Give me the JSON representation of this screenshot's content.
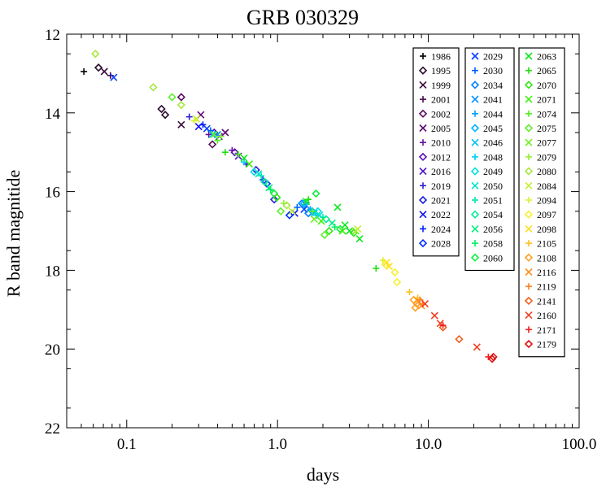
{
  "chart_data": {
    "type": "scatter",
    "title": "GRB 030329",
    "xlabel": "days",
    "ylabel": "R band magnitide",
    "xscale": "log",
    "xlim": [
      0.04,
      100.0
    ],
    "ylim": [
      22,
      12
    ],
    "y_inverted": true,
    "grid": false,
    "legend_placement": "top-right",
    "x_ticks": [
      {
        "v": 0.1,
        "label": "0.1"
      },
      {
        "v": 1.0,
        "label": "1.0"
      },
      {
        "v": 10.0,
        "label": "10.0"
      },
      {
        "v": 100.0,
        "label": "100.0"
      }
    ],
    "y_ticks": [
      {
        "v": 12,
        "label": "12"
      },
      {
        "v": 14,
        "label": "14"
      },
      {
        "v": 16,
        "label": "16"
      },
      {
        "v": 18,
        "label": "18"
      },
      {
        "v": 20,
        "label": "20"
      },
      {
        "v": 22,
        "label": "22"
      }
    ],
    "series": [
      {
        "name": "1986",
        "marker": "plus",
        "color": "#000000",
        "points": [
          [
            0.052,
            12.95
          ]
        ]
      },
      {
        "name": "1995",
        "marker": "diamond",
        "color": "#2a0a2a",
        "points": [
          [
            0.065,
            12.85
          ],
          [
            0.17,
            13.9
          ],
          [
            0.18,
            14.05
          ]
        ]
      },
      {
        "name": "1999",
        "marker": "x",
        "color": "#3a0a3a",
        "points": [
          [
            0.071,
            12.95
          ],
          [
            0.23,
            14.3
          ]
        ]
      },
      {
        "name": "2001",
        "marker": "plus",
        "color": "#4a0a4a",
        "points": [
          [
            0.078,
            13.05
          ]
        ]
      },
      {
        "name": "2002",
        "marker": "diamond",
        "color": "#5a0a60",
        "points": [
          [
            0.23,
            13.6
          ],
          [
            0.37,
            14.8
          ]
        ]
      },
      {
        "name": "2005",
        "marker": "x",
        "color": "#650a75",
        "points": [
          [
            0.31,
            14.05
          ],
          [
            0.45,
            14.5
          ]
        ]
      },
      {
        "name": "2010",
        "marker": "plus",
        "color": "#6a10a0",
        "points": [
          [
            0.35,
            14.55
          ],
          [
            0.5,
            14.95
          ]
        ]
      },
      {
        "name": "2012",
        "marker": "diamond",
        "color": "#5a10b5",
        "points": [
          [
            0.38,
            14.5
          ],
          [
            0.52,
            15.0
          ]
        ]
      },
      {
        "name": "2016",
        "marker": "x",
        "color": "#5010c0",
        "points": [
          [
            0.41,
            14.6
          ],
          [
            0.55,
            15.1
          ]
        ]
      },
      {
        "name": "2019",
        "marker": "plus",
        "color": "#3020d5",
        "points": [
          [
            0.26,
            14.1
          ],
          [
            0.62,
            15.3
          ]
        ]
      },
      {
        "name": "2021",
        "marker": "diamond",
        "color": "#2020e0",
        "points": [
          [
            0.72,
            15.45
          ],
          [
            0.95,
            16.2
          ]
        ]
      },
      {
        "name": "2022",
        "marker": "x",
        "color": "#1010f0",
        "points": [
          [
            0.3,
            14.35
          ],
          [
            1.3,
            16.55
          ]
        ]
      },
      {
        "name": "2024",
        "marker": "plus",
        "color": "#0020ff",
        "points": [
          [
            0.32,
            14.3
          ],
          [
            0.8,
            15.7
          ]
        ]
      },
      {
        "name": "2028",
        "marker": "diamond",
        "color": "#0030ff",
        "points": [
          [
            0.85,
            15.8
          ],
          [
            1.2,
            16.6
          ]
        ]
      },
      {
        "name": "2029",
        "marker": "x",
        "color": "#0040ff",
        "points": [
          [
            0.082,
            13.1
          ],
          [
            0.34,
            14.4
          ],
          [
            1.5,
            16.45
          ]
        ]
      },
      {
        "name": "2030",
        "marker": "plus",
        "color": "#0060ff",
        "points": [
          [
            0.36,
            14.45
          ],
          [
            1.35,
            16.4
          ]
        ]
      },
      {
        "name": "2034",
        "marker": "diamond",
        "color": "#0080ff",
        "points": [
          [
            1.45,
            16.3
          ],
          [
            1.6,
            16.55
          ]
        ]
      },
      {
        "name": "2041",
        "marker": "x",
        "color": "#0090ff",
        "points": [
          [
            0.4,
            14.55
          ],
          [
            1.55,
            16.35
          ]
        ]
      },
      {
        "name": "2044",
        "marker": "plus",
        "color": "#00a0ff",
        "points": [
          [
            0.42,
            14.6
          ],
          [
            1.65,
            16.45
          ]
        ]
      },
      {
        "name": "2045",
        "marker": "diamond",
        "color": "#00b5ff",
        "points": [
          [
            1.5,
            16.3
          ],
          [
            1.7,
            16.5
          ]
        ]
      },
      {
        "name": "2046",
        "marker": "x",
        "color": "#00c0f0",
        "points": [
          [
            0.37,
            14.55
          ],
          [
            1.75,
            16.55
          ]
        ]
      },
      {
        "name": "2048",
        "marker": "plus",
        "color": "#00d0f0",
        "points": [
          [
            0.6,
            15.25
          ],
          [
            1.8,
            16.6
          ]
        ]
      },
      {
        "name": "2049",
        "marker": "diamond",
        "color": "#00e0e0",
        "points": [
          [
            0.7,
            15.5
          ],
          [
            1.85,
            16.5
          ]
        ]
      },
      {
        "name": "2050",
        "marker": "x",
        "color": "#00e0c8",
        "points": [
          [
            0.75,
            15.55
          ],
          [
            1.9,
            16.6
          ]
        ]
      },
      {
        "name": "2051",
        "marker": "plus",
        "color": "#00e8b0",
        "points": [
          [
            0.78,
            15.6
          ],
          [
            2.0,
            16.65
          ]
        ]
      },
      {
        "name": "2054",
        "marker": "diamond",
        "color": "#00ee98",
        "points": [
          [
            0.82,
            15.75
          ],
          [
            2.1,
            16.7
          ]
        ]
      },
      {
        "name": "2056",
        "marker": "x",
        "color": "#00f080",
        "points": [
          [
            0.88,
            15.9
          ],
          [
            2.3,
            16.8
          ]
        ]
      },
      {
        "name": "2058",
        "marker": "plus",
        "color": "#00f060",
        "points": [
          [
            0.9,
            15.95
          ],
          [
            2.4,
            16.9
          ]
        ]
      },
      {
        "name": "2060",
        "marker": "diamond",
        "color": "#10f040",
        "points": [
          [
            0.95,
            16.05
          ],
          [
            1.8,
            16.05
          ],
          [
            2.6,
            16.95
          ]
        ]
      },
      {
        "name": "2063",
        "marker": "x",
        "color": "#10e820",
        "points": [
          [
            0.6,
            15.15
          ],
          [
            1.55,
            16.25
          ],
          [
            2.5,
            16.4
          ],
          [
            2.8,
            16.85
          ],
          [
            3.0,
            17.0
          ],
          [
            3.5,
            17.2
          ]
        ]
      },
      {
        "name": "2065",
        "marker": "plus",
        "color": "#20e010",
        "points": [
          [
            0.45,
            15.0
          ],
          [
            1.6,
            16.2
          ],
          [
            4.5,
            17.95
          ]
        ]
      },
      {
        "name": "2070",
        "marker": "diamond",
        "color": "#30e810",
        "points": [
          [
            0.99,
            16.15
          ],
          [
            2.2,
            17.0
          ],
          [
            3.2,
            17.05
          ]
        ]
      },
      {
        "name": "2071",
        "marker": "x",
        "color": "#40f010",
        "points": [
          [
            0.65,
            15.3
          ],
          [
            1.95,
            16.75
          ],
          [
            2.7,
            17.0
          ]
        ]
      },
      {
        "name": "2074",
        "marker": "plus",
        "color": "#50f020",
        "points": [
          [
            0.4,
            14.7
          ],
          [
            0.55,
            15.05
          ],
          [
            1.7,
            16.5
          ]
        ]
      },
      {
        "name": "2075",
        "marker": "diamond",
        "color": "#60f030",
        "points": [
          [
            0.2,
            13.6
          ],
          [
            1.05,
            16.5
          ],
          [
            2.05,
            17.1
          ]
        ]
      },
      {
        "name": "2077",
        "marker": "x",
        "color": "#70f020",
        "points": [
          [
            0.38,
            14.55
          ],
          [
            1.75,
            16.7
          ],
          [
            3.3,
            17.0
          ]
        ]
      },
      {
        "name": "2079",
        "marker": "plus",
        "color": "#90f030",
        "points": [
          [
            0.42,
            14.6
          ],
          [
            1.1,
            16.3
          ]
        ]
      },
      {
        "name": "2080",
        "marker": "diamond",
        "color": "#a8e840",
        "points": [
          [
            0.062,
            12.5
          ],
          [
            0.15,
            13.35
          ],
          [
            0.23,
            13.8
          ],
          [
            1.15,
            16.35
          ]
        ]
      },
      {
        "name": "2084",
        "marker": "x",
        "color": "#c0f030",
        "points": [
          [
            0.29,
            14.15
          ],
          [
            1.25,
            16.5
          ],
          [
            3.4,
            16.95
          ]
        ]
      },
      {
        "name": "2094",
        "marker": "plus",
        "color": "#e0f030",
        "points": [
          [
            0.28,
            14.2
          ],
          [
            5.0,
            17.75
          ]
        ]
      },
      {
        "name": "2097",
        "marker": "diamond",
        "color": "#f8f030",
        "points": [
          [
            5.2,
            17.85
          ],
          [
            6.0,
            18.05
          ],
          [
            6.2,
            18.3
          ]
        ]
      },
      {
        "name": "2098",
        "marker": "x",
        "color": "#ffe020",
        "points": [
          [
            5.3,
            17.8
          ],
          [
            5.5,
            17.9
          ]
        ]
      },
      {
        "name": "2105",
        "marker": "plus",
        "color": "#ffc020",
        "points": [
          [
            7.5,
            18.55
          ],
          [
            8.5,
            18.7
          ]
        ]
      },
      {
        "name": "2108",
        "marker": "diamond",
        "color": "#ffa020",
        "points": [
          [
            8.0,
            18.75
          ],
          [
            8.2,
            18.95
          ],
          [
            8.4,
            18.85
          ]
        ]
      },
      {
        "name": "2116",
        "marker": "x",
        "color": "#ff9020",
        "points": [
          [
            8.6,
            18.8
          ],
          [
            9.0,
            18.9
          ]
        ]
      },
      {
        "name": "2119",
        "marker": "plus",
        "color": "#ff8020",
        "points": [
          [
            8.8,
            18.75
          ],
          [
            9.2,
            18.85
          ]
        ]
      },
      {
        "name": "2141",
        "marker": "diamond",
        "color": "#f06020",
        "points": [
          [
            12.5,
            19.45
          ],
          [
            16.0,
            19.75
          ]
        ]
      },
      {
        "name": "2160",
        "marker": "x",
        "color": "#f04020",
        "points": [
          [
            9.5,
            18.85
          ],
          [
            11.0,
            19.15
          ],
          [
            12.0,
            19.35
          ],
          [
            21.0,
            19.95
          ]
        ]
      },
      {
        "name": "2171",
        "marker": "plus",
        "color": "#f02020",
        "points": [
          [
            25.0,
            20.2
          ],
          [
            12.5,
            19.4
          ]
        ]
      },
      {
        "name": "2179",
        "marker": "diamond",
        "color": "#e01010",
        "points": [
          [
            26.5,
            20.25
          ],
          [
            27.0,
            20.2
          ]
        ]
      }
    ]
  }
}
